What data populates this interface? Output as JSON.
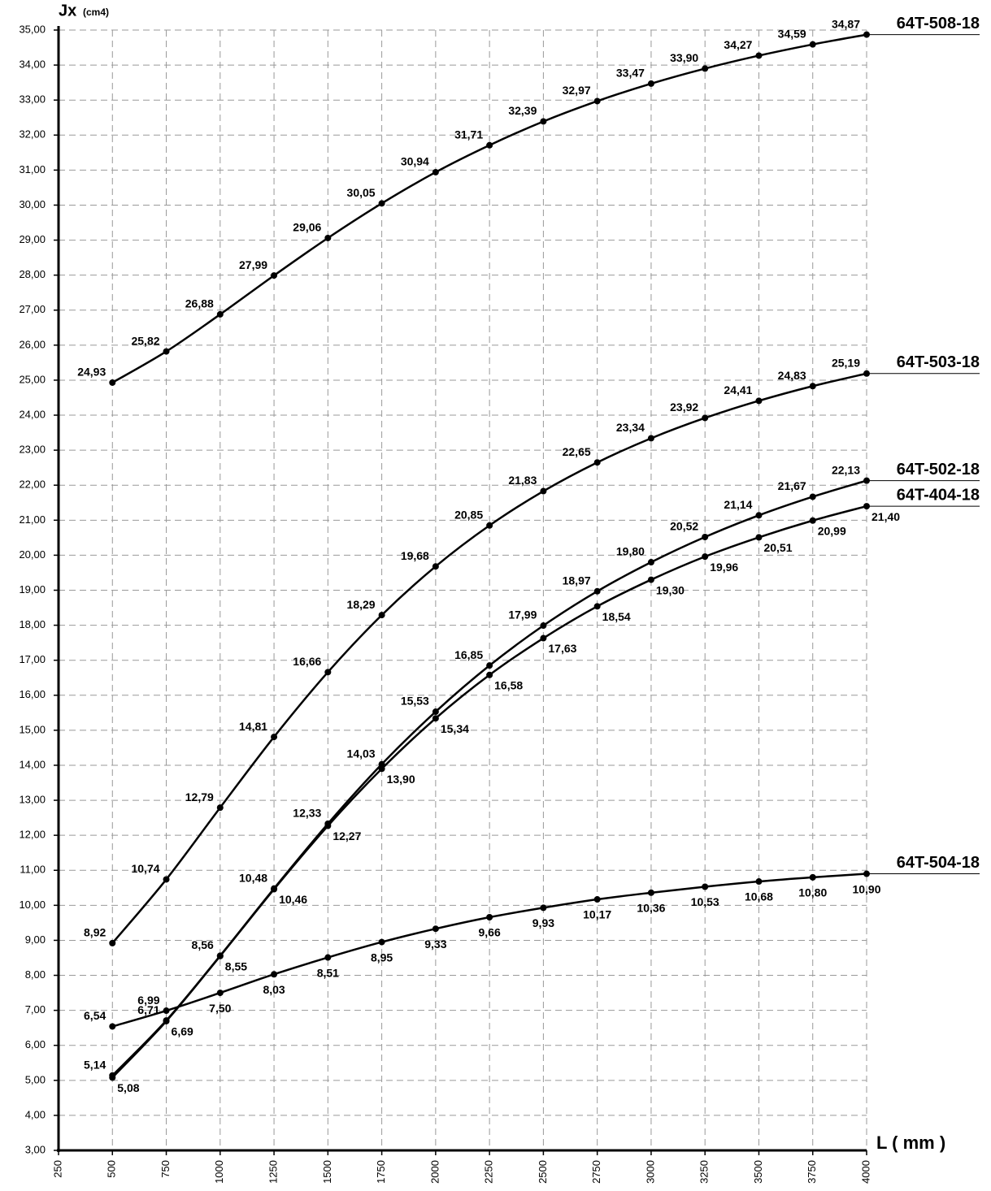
{
  "chart_data": {
    "type": "line",
    "y_label": "Jx",
    "y_unit": "(cm4)",
    "x_label": "L ( mm )",
    "x": [
      500,
      750,
      1000,
      1250,
      1500,
      1750,
      2000,
      2250,
      2500,
      2750,
      3000,
      3250,
      3500,
      3750,
      4000
    ],
    "xlim": [
      250,
      4000
    ],
    "xticks": [
      250,
      500,
      750,
      1000,
      1250,
      1500,
      1750,
      2000,
      2250,
      2500,
      2750,
      3000,
      3250,
      3500,
      3750,
      4000
    ],
    "ylim": [
      3,
      35
    ],
    "yticks": [
      {
        "value": 3,
        "label": "3,00"
      },
      {
        "value": 4,
        "label": "4,00"
      },
      {
        "value": 5,
        "label": "5,00"
      },
      {
        "value": 6,
        "label": "6,00"
      },
      {
        "value": 7,
        "label": "7,00"
      },
      {
        "value": 8,
        "label": "8,00"
      },
      {
        "value": 9,
        "label": "9,00"
      },
      {
        "value": 10,
        "label": "10,00"
      },
      {
        "value": 11,
        "label": "11,00"
      },
      {
        "value": 12,
        "label": "12,00"
      },
      {
        "value": 13,
        "label": "13,00"
      },
      {
        "value": 14,
        "label": "14,00"
      },
      {
        "value": 15,
        "label": "15,00"
      },
      {
        "value": 16,
        "label": "16,00"
      },
      {
        "value": 17,
        "label": "17,00"
      },
      {
        "value": 18,
        "label": "18,00"
      },
      {
        "value": 19,
        "label": "19,00"
      },
      {
        "value": 20,
        "label": "20,00"
      },
      {
        "value": 21,
        "label": "21,00"
      },
      {
        "value": 22,
        "label": "22,00"
      },
      {
        "value": 23,
        "label": "23,00"
      },
      {
        "value": 24,
        "label": "24,00"
      },
      {
        "value": 25,
        "label": "25,00"
      },
      {
        "value": 26,
        "label": "26,00"
      },
      {
        "value": 27,
        "label": "27,00"
      },
      {
        "value": 28,
        "label": "28,00"
      },
      {
        "value": 29,
        "label": "29,00"
      },
      {
        "value": 30,
        "label": "30,00"
      },
      {
        "value": 31,
        "label": "31,00"
      },
      {
        "value": 32,
        "label": "32,00"
      },
      {
        "value": 33,
        "label": "33,00"
      },
      {
        "value": 34,
        "label": "34,00"
      },
      {
        "value": 35,
        "label": "35,00"
      }
    ],
    "grid": true,
    "series": [
      {
        "name": "64T-508-18",
        "color": "#000000",
        "values": [
          24.93,
          25.82,
          26.88,
          27.99,
          29.06,
          30.05,
          30.94,
          31.71,
          32.39,
          32.97,
          33.47,
          33.9,
          34.27,
          34.59,
          34.87
        ],
        "value_labels": [
          "24,93",
          "25,82",
          "26,88",
          "27,99",
          "29,06",
          "30,05",
          "30,94",
          "31,71",
          "32,39",
          "32,97",
          "33,47",
          "33,90",
          "34,27",
          "34,59",
          "34,87"
        ]
      },
      {
        "name": "64T-503-18",
        "color": "#000000",
        "values": [
          8.92,
          10.74,
          12.79,
          14.81,
          16.66,
          18.29,
          19.68,
          20.85,
          21.83,
          22.65,
          23.34,
          23.92,
          24.41,
          24.83,
          25.19
        ],
        "value_labels": [
          "8,92",
          "10,74",
          "12,79",
          "14,81",
          "16,66",
          "18,29",
          "19,68",
          "20,85",
          "21,83",
          "22,65",
          "23,34",
          "23,92",
          "24,41",
          "24,83",
          "25,19"
        ]
      },
      {
        "name": "64T-502-18",
        "color": "#000000",
        "values": [
          5.14,
          6.71,
          8.56,
          10.48,
          12.33,
          14.03,
          15.53,
          16.85,
          17.99,
          18.97,
          19.8,
          20.52,
          21.14,
          21.67,
          22.13
        ],
        "value_labels": [
          "5,14",
          "6,71",
          "8,56",
          "10,48",
          "12,33",
          "14,03",
          "15,53",
          "16,85",
          "17,99",
          "18,97",
          "19,80",
          "20,52",
          "21,14",
          "21,67",
          "22,13"
        ]
      },
      {
        "name": "64T-404-18",
        "color": "#000000",
        "values": [
          5.08,
          6.69,
          8.55,
          10.46,
          12.27,
          13.9,
          15.34,
          16.58,
          17.63,
          18.54,
          19.3,
          19.96,
          20.51,
          20.99,
          21.4
        ],
        "value_labels": [
          "5,08",
          "6,69",
          "8,55",
          "10,46",
          "12,27",
          "13,90",
          "15,34",
          "16,58",
          "17,63",
          "18,54",
          "19,30",
          "19,96",
          "20,51",
          "20,99",
          "21,40"
        ]
      },
      {
        "name": "64T-504-18",
        "color": "#000000",
        "values": [
          6.54,
          6.99,
          7.5,
          8.03,
          8.51,
          8.95,
          9.33,
          9.66,
          9.93,
          10.17,
          10.36,
          10.53,
          10.68,
          10.8,
          10.9
        ],
        "value_labels": [
          "6,54",
          "6,99",
          "7,50",
          "8,03",
          "8,51",
          "8,95",
          "9,33",
          "9,66",
          "9,93",
          "10,17",
          "10,36",
          "10,53",
          "10,68",
          "10,80",
          "10,90"
        ]
      }
    ]
  }
}
